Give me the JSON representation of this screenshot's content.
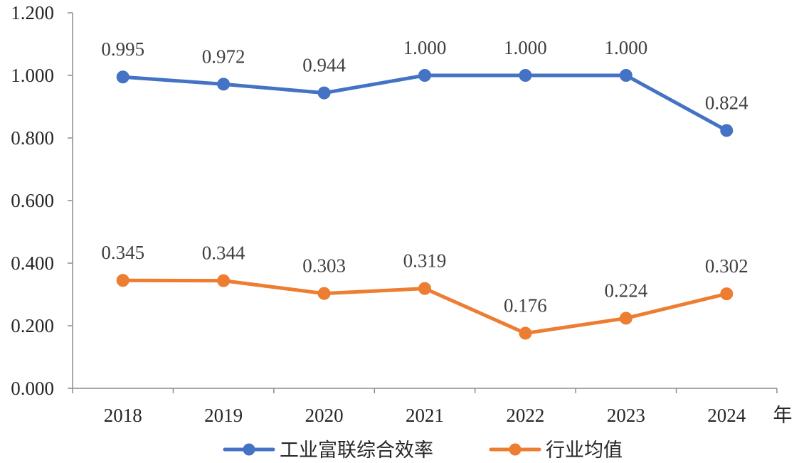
{
  "chart_data": {
    "type": "line",
    "title": "",
    "xlabel": "年",
    "ylabel": "",
    "categories": [
      "2018",
      "2019",
      "2020",
      "2021",
      "2022",
      "2023",
      "2024"
    ],
    "ylim": [
      0,
      1.2
    ],
    "yticks": [
      "0.000",
      "0.200",
      "0.400",
      "0.600",
      "0.800",
      "1.000",
      "1.200"
    ],
    "grid": false,
    "legend_position": "bottom",
    "series": [
      {
        "name": "工业富联综合效率",
        "color": "#4472C4",
        "values": [
          0.995,
          0.972,
          0.944,
          1.0,
          1.0,
          1.0,
          0.824
        ],
        "labels": [
          "0.995",
          "0.972",
          "0.944",
          "1.000",
          "1.000",
          "1.000",
          "0.824"
        ]
      },
      {
        "name": "行业均值",
        "color": "#ED7D31",
        "values": [
          0.345,
          0.344,
          0.303,
          0.319,
          0.176,
          0.224,
          0.302
        ],
        "labels": [
          "0.345",
          "0.344",
          "0.303",
          "0.319",
          "0.176",
          "0.224",
          "0.302"
        ]
      }
    ]
  }
}
